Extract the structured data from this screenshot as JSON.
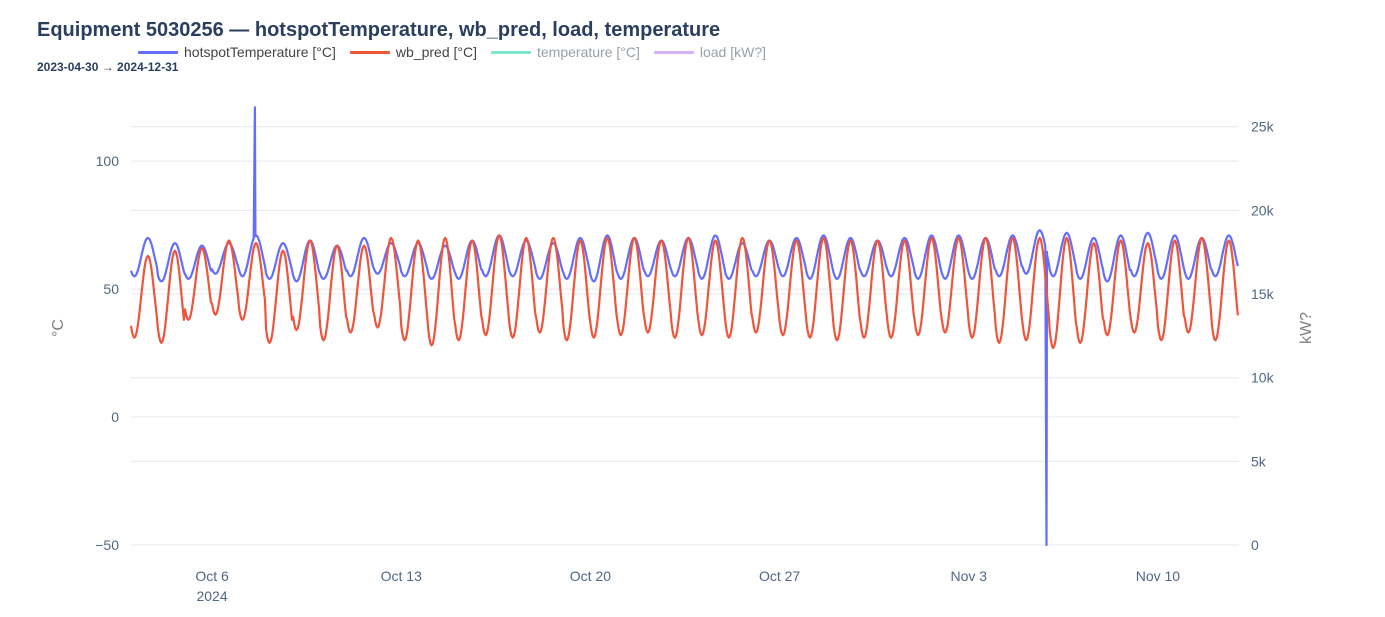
{
  "title": "Equipment 5030256 — hotspotTemperature, wb_pred, load, temperature",
  "subtitle": "2023-04-30 → 2024-12-31",
  "legend": [
    {
      "name": "hotspotTemperature [°C]",
      "color": "#636efa",
      "hidden": false
    },
    {
      "name": "wb_pred [°C]",
      "color": "#ef553b",
      "hidden": false
    },
    {
      "name": "temperature [°C]",
      "color": "#00cc96",
      "hidden": true
    },
    {
      "name": "load [kW?]",
      "color": "#ab63fa",
      "hidden": true
    }
  ],
  "chart_data": {
    "type": "line",
    "title": "Equipment 5030256 — hotspotTemperature, wb_pred, load, temperature",
    "subtitle": "2023-04-30 → 2024-12-31",
    "x_range": [
      "2024-10-03",
      "2024-11-13"
    ],
    "x_ticks": [
      {
        "date": "2024-10-06",
        "label": "Oct 6",
        "sublabel": "2024"
      },
      {
        "date": "2024-10-13",
        "label": "Oct 13",
        "sublabel": ""
      },
      {
        "date": "2024-10-20",
        "label": "Oct 20",
        "sublabel": ""
      },
      {
        "date": "2024-10-27",
        "label": "Oct 27",
        "sublabel": ""
      },
      {
        "date": "2024-11-03",
        "label": "Nov 3",
        "sublabel": ""
      },
      {
        "date": "2024-11-10",
        "label": "Nov 10",
        "sublabel": ""
      }
    ],
    "y_left": {
      "label": "°C",
      "range": [
        -50,
        120
      ],
      "ticks": [
        -50,
        0,
        50,
        100
      ],
      "tick_labels": [
        "−50",
        "0",
        "50",
        "100"
      ]
    },
    "y_right": {
      "label": "kW?",
      "range": [
        0,
        26000
      ],
      "ticks": [
        0,
        5000,
        10000,
        15000,
        20000,
        25000
      ],
      "tick_labels": [
        "0",
        "5k",
        "10k",
        "15k",
        "20k",
        "25k"
      ]
    },
    "grid": true,
    "legend_position": "top",
    "series": [
      {
        "name": "hotspotTemperature [°C]",
        "color": "#636efa",
        "axis": "left",
        "daily_pattern": {
          "start": "2024-10-03",
          "days": 41,
          "peak_hour": 15,
          "min_values": [
            55,
            53,
            54,
            56,
            55,
            54,
            53,
            54,
            55,
            56,
            55,
            54,
            54,
            55,
            55,
            54,
            54,
            53,
            54,
            55,
            55,
            54,
            54,
            55,
            55,
            54,
            54,
            55,
            55,
            54,
            54,
            54,
            55,
            56,
            55,
            54,
            53,
            55,
            54,
            54,
            55
          ],
          "max_values": [
            70,
            68,
            67,
            68,
            71,
            68,
            69,
            67,
            70,
            68,
            68,
            67,
            69,
            71,
            69,
            68,
            70,
            71,
            70,
            69,
            70,
            71,
            68,
            69,
            70,
            71,
            70,
            69,
            70,
            71,
            71,
            70,
            71,
            73,
            72,
            70,
            71,
            72,
            71,
            70,
            71
          ]
        },
        "spikes": [
          {
            "date": "2024-10-07T14:00",
            "value": 121
          },
          {
            "date": "2024-11-05T21:00",
            "value": -50
          }
        ]
      },
      {
        "name": "wb_pred [°C]",
        "color": "#ef553b",
        "axis": "left",
        "daily_pattern": {
          "start": "2024-10-03",
          "days": 41,
          "peak_hour": 15,
          "min_values": [
            31,
            29,
            38,
            40,
            38,
            29,
            34,
            30,
            33,
            35,
            30,
            28,
            30,
            32,
            31,
            33,
            30,
            31,
            32,
            33,
            31,
            32,
            31,
            33,
            32,
            31,
            30,
            31,
            31,
            32,
            33,
            31,
            29,
            30,
            27,
            29,
            32,
            33,
            30,
            33,
            30
          ],
          "max_values": [
            63,
            65,
            66,
            69,
            68,
            65,
            69,
            67,
            67,
            70,
            69,
            70,
            69,
            71,
            70,
            70,
            69,
            70,
            70,
            69,
            70,
            69,
            70,
            69,
            69,
            70,
            69,
            69,
            69,
            70,
            70,
            70,
            70,
            70,
            70,
            68,
            69,
            68,
            69,
            70,
            69
          ]
        }
      },
      {
        "name": "temperature [°C]",
        "color": "#00cc96",
        "axis": "left",
        "hidden": true,
        "values": []
      },
      {
        "name": "load [kW?]",
        "color": "#ab63fa",
        "axis": "right",
        "hidden": true,
        "values": []
      }
    ]
  }
}
